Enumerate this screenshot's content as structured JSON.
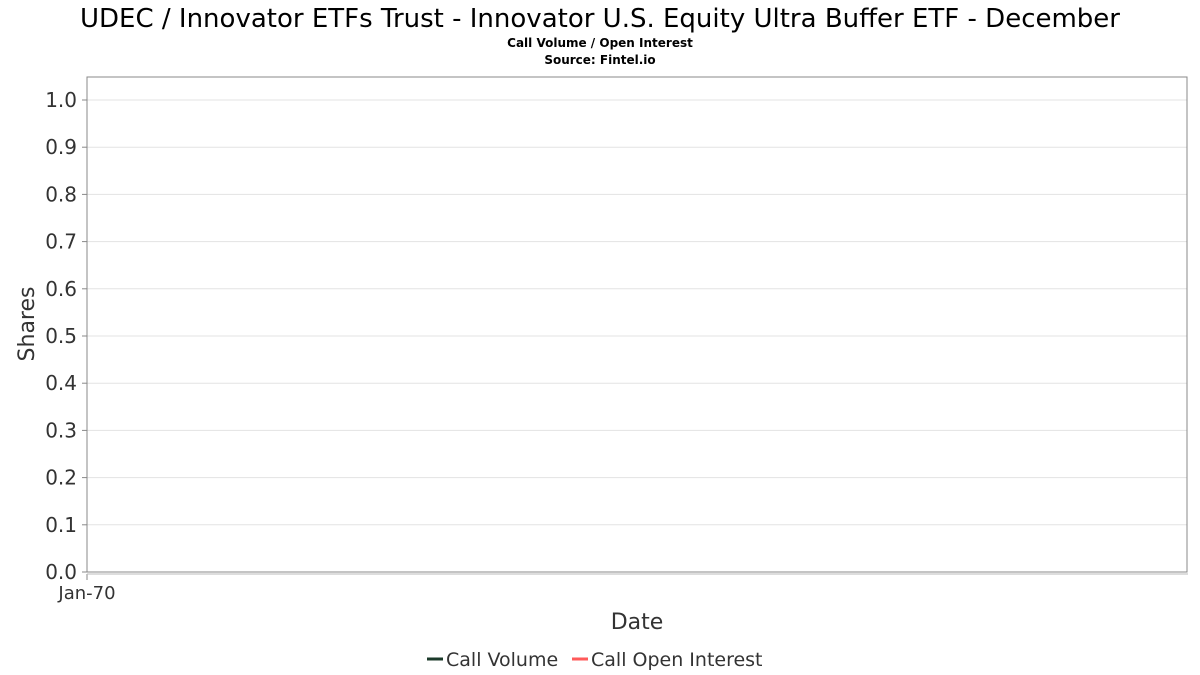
{
  "chart_data": {
    "type": "line",
    "title": "UDEC / Innovator ETFs Trust - Innovator U.S. Equity Ultra Buffer ETF - December",
    "subtitle_lines": [
      "Call Volume / Open Interest",
      "Source: Fintel.io"
    ],
    "xlabel": "Date",
    "ylabel": "Shares",
    "x_tick_labels": [
      "Jan-70"
    ],
    "y_tick_labels": [
      "0.0",
      "0.1",
      "0.2",
      "0.3",
      "0.4",
      "0.5",
      "0.6",
      "0.7",
      "0.8",
      "0.9",
      "1.0"
    ],
    "ylim": [
      0,
      1.05
    ],
    "grid": true,
    "legend_position": "bottom-center",
    "series": [
      {
        "name": "Call Volume",
        "color": "#1b3a2a",
        "values": []
      },
      {
        "name": "Call Open Interest",
        "color": "#ff5a5a",
        "values": []
      }
    ]
  }
}
